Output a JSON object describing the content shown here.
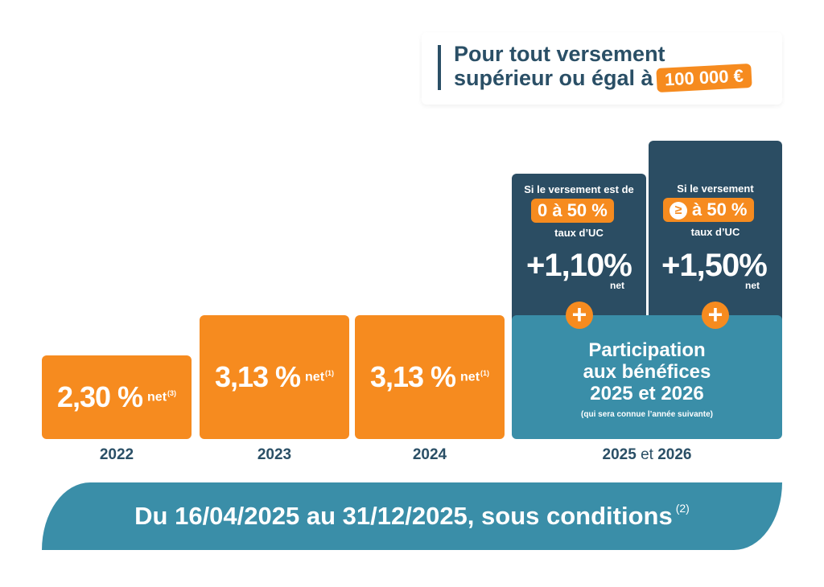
{
  "callout": {
    "line1": "Pour tout versement",
    "line2": "supérieur ou égal à",
    "amount": "100 000 €"
  },
  "chart_data": {
    "type": "bar",
    "categories": [
      "2022",
      "2023",
      "2024"
    ],
    "values": [
      2.3,
      3.13,
      3.13
    ],
    "value_labels": [
      "2,30 %",
      "3,13 %",
      "3,13 %"
    ],
    "net_label": "net",
    "footnotes": [
      "(3)",
      "(1)",
      "(1)"
    ],
    "last_category": {
      "a": "2025",
      "and": "et",
      "b": "2026"
    },
    "bonus_options": [
      {
        "cond_text": "Si le versement est de",
        "pill": "0 à 50 %",
        "uc": "taux d’UC",
        "rate": "+1,10%",
        "net": "net",
        "icon": ""
      },
      {
        "cond_text": "Si le versement",
        "pill": "à 50 %",
        "uc": "taux d’UC",
        "rate": "+1,50%",
        "net": "net",
        "icon": "greater-or-equal-icon"
      }
    ],
    "participation": {
      "line1": "Participation",
      "line2": "aux bénéfices",
      "line3": "2025 et 2026",
      "note": "(qui sera connue l’année suivante)"
    },
    "colors": {
      "orange": "#f68b1f",
      "navy": "#2b4d63",
      "teal": "#3a8ea8"
    }
  },
  "banner": {
    "text": "Du 16/04/2025 au 31/12/2025, sous conditions",
    "footnote": "(2)"
  }
}
